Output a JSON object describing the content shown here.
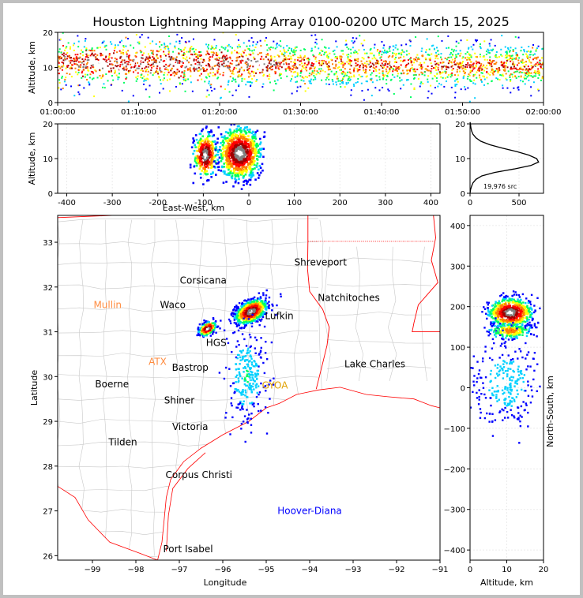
{
  "title": "Houston Lightning Mapping Array 0100-0200 UTC March 15, 2025",
  "chart_data": [
    {
      "type": "scatter",
      "panel": "time-altitude",
      "ylabel": "Altitude, km",
      "xlim": [
        "01:00:00",
        "02:00:00"
      ],
      "ylim": [
        0,
        20
      ],
      "xticks": [
        "01:00:00",
        "01:10:00",
        "01:20:00",
        "01:30:00",
        "01:40:00",
        "01:50:00",
        "02:00:00"
      ],
      "yticks": [
        0,
        10,
        20
      ],
      "description_of_density": "continuous band of sources centered near 11 km altitude, densest 01:00-01:25",
      "band_center_km": 11.5,
      "band_halfwidth_km": 3
    },
    {
      "type": "scatter",
      "panel": "eastwest-altitude",
      "xlabel": "East-West, km",
      "ylabel": "Altitude, km",
      "xlim": [
        -420,
        420
      ],
      "ylim": [
        0,
        20
      ],
      "xticks": [
        -400,
        -300,
        -200,
        -100,
        0,
        100,
        200,
        300,
        400
      ],
      "yticks": [
        0,
        10,
        20
      ],
      "clusters": [
        {
          "x": -95,
          "y": 11,
          "sx": 12,
          "sy": 3
        },
        {
          "x": -20,
          "y": 11.5,
          "sx": 22,
          "sy": 3.5
        }
      ]
    },
    {
      "type": "line",
      "panel": "altitude-histogram",
      "xlim": [
        0,
        750
      ],
      "ylim": [
        0,
        20
      ],
      "xticks": [
        0,
        500
      ],
      "yticks": [
        0,
        10,
        20
      ],
      "annotation": "19,976 src",
      "x": [
        0,
        5,
        15,
        30,
        60,
        120,
        250,
        450,
        620,
        700,
        680,
        600,
        480,
        330,
        200,
        110,
        60,
        30,
        15,
        8,
        4,
        0
      ],
      "y": [
        0,
        1,
        2,
        3,
        4,
        5,
        6,
        7,
        8,
        9,
        10,
        11,
        12,
        13,
        14,
        15,
        16,
        17,
        18,
        19,
        20,
        20.5
      ]
    },
    {
      "type": "scatter",
      "panel": "map",
      "xlabel": "Longitude",
      "ylabel": "Latitude",
      "xlim": [
        -99.8,
        -91
      ],
      "ylim": [
        25.9,
        33.6
      ],
      "xticks": [
        -99,
        -98,
        -97,
        -96,
        -95,
        -94,
        -93,
        -92,
        -91
      ],
      "yticks": [
        26,
        27,
        28,
        29,
        30,
        31,
        32,
        33
      ],
      "cities": [
        {
          "name": "Shreveport",
          "lon": -93.75,
          "lat": 32.55,
          "color": "#000000"
        },
        {
          "name": "Corsicana",
          "lon": -96.45,
          "lat": 32.15,
          "color": "#000000"
        },
        {
          "name": "Natchitoches",
          "lon": -93.1,
          "lat": 31.76,
          "color": "#000000"
        },
        {
          "name": "Mullin",
          "lon": -98.65,
          "lat": 31.6,
          "color": "#ff8c40"
        },
        {
          "name": "Waco",
          "lon": -97.15,
          "lat": 31.6,
          "color": "#000000"
        },
        {
          "name": "Lufkin",
          "lon": -94.7,
          "lat": 31.35,
          "color": "#000000"
        },
        {
          "name": "HGS",
          "lon": -96.15,
          "lat": 30.75,
          "color": "#000000"
        },
        {
          "name": "ATX",
          "lon": -97.5,
          "lat": 30.33,
          "color": "#ff8c40"
        },
        {
          "name": "Bastrop",
          "lon": -96.75,
          "lat": 30.2,
          "color": "#000000"
        },
        {
          "name": "Lake Charles",
          "lon": -92.5,
          "lat": 30.28,
          "color": "#000000"
        },
        {
          "name": "Boerne",
          "lon": -98.55,
          "lat": 29.83,
          "color": "#000000"
        },
        {
          "name": "GYOA",
          "lon": -94.8,
          "lat": 29.8,
          "color": "#e0a000"
        },
        {
          "name": "Shiner",
          "lon": -97.0,
          "lat": 29.47,
          "color": "#000000"
        },
        {
          "name": "Victoria",
          "lon": -96.75,
          "lat": 28.88,
          "color": "#000000"
        },
        {
          "name": "Tilden",
          "lon": -98.3,
          "lat": 28.53,
          "color": "#000000"
        },
        {
          "name": "Corpus Christi",
          "lon": -96.55,
          "lat": 27.8,
          "color": "#000000"
        },
        {
          "name": "Hoover-Diana",
          "lon": -94.0,
          "lat": 27.0,
          "color": "#0000ff"
        },
        {
          "name": "Port Isabel",
          "lon": -96.8,
          "lat": 26.15,
          "color": "#000000"
        }
      ],
      "clusters": [
        {
          "lon": -95.35,
          "lat": 31.45,
          "slon": 0.18,
          "slat": 0.12,
          "n": 900
        },
        {
          "lon": -96.35,
          "lat": 31.07,
          "slon": 0.1,
          "slat": 0.07,
          "n": 250
        },
        {
          "lon": -95.45,
          "lat": 30.0,
          "slon": 0.22,
          "slat": 0.5,
          "n": 260
        }
      ]
    },
    {
      "type": "scatter",
      "panel": "altitude-northsouth",
      "xlabel": "Altitude, km",
      "ylabel": "North-South, km",
      "xlim": [
        0,
        20
      ],
      "ylim": [
        -425,
        425
      ],
      "xticks": [
        0,
        10,
        20
      ],
      "yticks": [
        -400,
        -300,
        -200,
        -100,
        0,
        100,
        200,
        300,
        400
      ],
      "clusters": [
        {
          "x": 11,
          "y": 185,
          "sx": 3,
          "sy": 18
        },
        {
          "x": 11,
          "y": 140,
          "sx": 3,
          "sy": 10
        },
        {
          "x": 10,
          "y": 10,
          "sx": 5,
          "sy": 55
        }
      ]
    }
  ],
  "colors": {
    "spectrum": [
      "#0000ff",
      "#00d0ff",
      "#00ff60",
      "#ffff00",
      "#ff8000",
      "#ff0000",
      "#a00000",
      "#808080",
      "#ffffff"
    ],
    "state_border": "#ff0000",
    "county_border": "#c8c8c8",
    "coast": "#ff0000"
  }
}
